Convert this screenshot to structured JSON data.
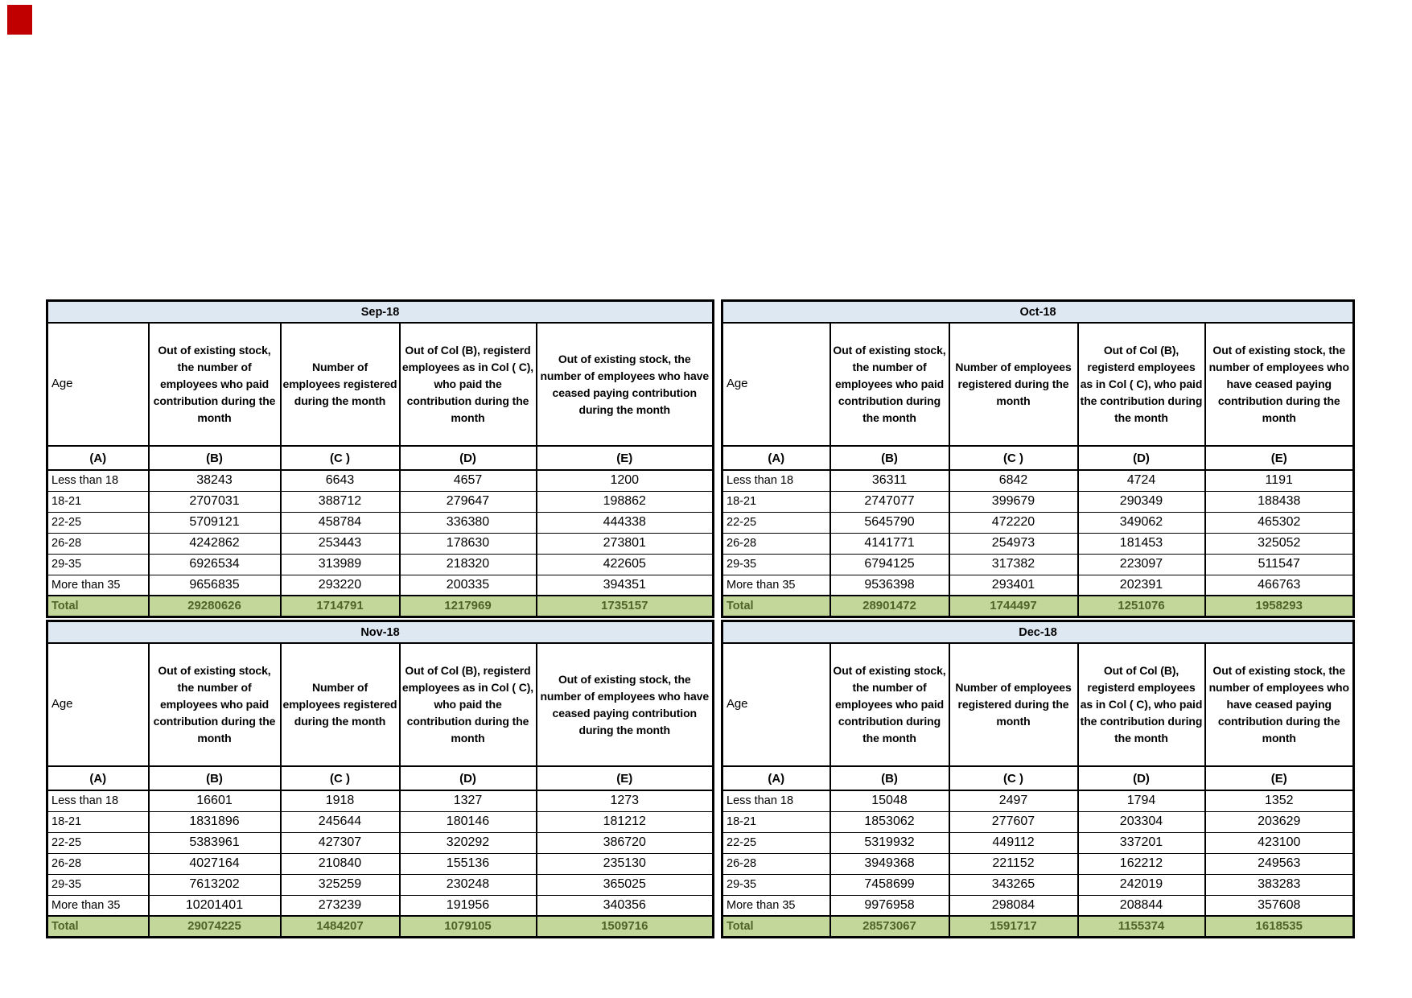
{
  "shared": {
    "age_label": "Age",
    "col_letters": [
      "(A)",
      "(B)",
      "(C )",
      "(D)",
      "(E)"
    ],
    "column_headers": [
      "Out of existing stock, the number of employees who paid contribution during the month",
      "Number of employees registered during the month",
      "Out of Col (B), registerd employees as in Col ( C), who paid the contribution during the month",
      "Out of existing stock, the number of employees who have ceased paying contribution during the month"
    ],
    "colors": {
      "title_bg": "#dee8f2",
      "total_bg": "#c4d79b",
      "total_text": "#4f6228",
      "red_marker": "#c00000",
      "border": "#000000"
    }
  },
  "chart_data": [
    {
      "type": "table",
      "title": "Sep-18",
      "rows": [
        [
          "Less than 18",
          "38243",
          "6643",
          "4657",
          "1200"
        ],
        [
          "18-21",
          "2707031",
          "388712",
          "279647",
          "198862"
        ],
        [
          "22-25",
          "5709121",
          "458784",
          "336380",
          "444338"
        ],
        [
          "26-28",
          "4242862",
          "253443",
          "178630",
          "273801"
        ],
        [
          "29-35",
          "6926534",
          "313989",
          "218320",
          "422605"
        ],
        [
          "More than 35",
          "9656835",
          "293220",
          "200335",
          "394351"
        ]
      ],
      "total": [
        "Total",
        "29280626",
        "1714791",
        "1217969",
        "1735157"
      ]
    },
    {
      "type": "table",
      "title": "Oct-18",
      "rows": [
        [
          "Less than 18",
          "36311",
          "6842",
          "4724",
          "1191"
        ],
        [
          "18-21",
          "2747077",
          "399679",
          "290349",
          "188438"
        ],
        [
          "22-25",
          "5645790",
          "472220",
          "349062",
          "465302"
        ],
        [
          "26-28",
          "4141771",
          "254973",
          "181453",
          "325052"
        ],
        [
          "29-35",
          "6794125",
          "317382",
          "223097",
          "511547"
        ],
        [
          "More than 35",
          "9536398",
          "293401",
          "202391",
          "466763"
        ]
      ],
      "total": [
        "Total",
        "28901472",
        "1744497",
        "1251076",
        "1958293"
      ]
    },
    {
      "type": "table",
      "title": "Nov-18",
      "rows": [
        [
          "Less than 18",
          "16601",
          "1918",
          "1327",
          "1273"
        ],
        [
          "18-21",
          "1831896",
          "245644",
          "180146",
          "181212"
        ],
        [
          "22-25",
          "5383961",
          "427307",
          "320292",
          "386720"
        ],
        [
          "26-28",
          "4027164",
          "210840",
          "155136",
          "235130"
        ],
        [
          "29-35",
          "7613202",
          "325259",
          "230248",
          "365025"
        ],
        [
          "More than 35",
          "10201401",
          "273239",
          "191956",
          "340356"
        ]
      ],
      "total": [
        "Total",
        "29074225",
        "1484207",
        "1079105",
        "1509716"
      ]
    },
    {
      "type": "table",
      "title": "Dec-18",
      "rows": [
        [
          "Less than 18",
          "15048",
          "2497",
          "1794",
          "1352"
        ],
        [
          "18-21",
          "1853062",
          "277607",
          "203304",
          "203629"
        ],
        [
          "22-25",
          "5319932",
          "449112",
          "337201",
          "423100"
        ],
        [
          "26-28",
          "3949368",
          "221152",
          "162212",
          "249563"
        ],
        [
          "29-35",
          "7458699",
          "343265",
          "242019",
          "383283"
        ],
        [
          "More than 35",
          "9976958",
          "298084",
          "208844",
          "357608"
        ]
      ],
      "total": [
        "Total",
        "28573067",
        "1591717",
        "1155374",
        "1618535"
      ]
    }
  ]
}
